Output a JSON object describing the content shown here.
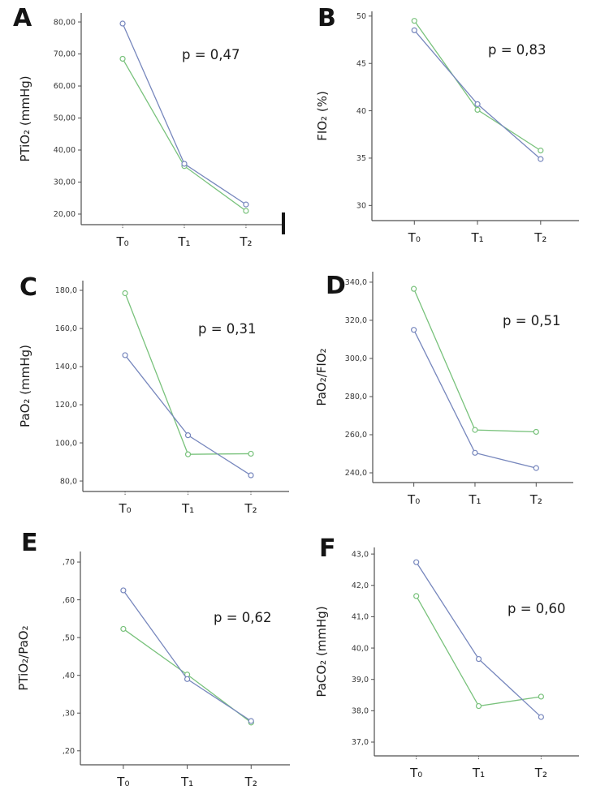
{
  "colors": {
    "series_blue": "#7787bd",
    "series_green": "#79c27c",
    "axis": "#4f4f4f",
    "tick_text": "#383838",
    "annotation_text": "#1c1c1c",
    "endcap": "#161616"
  },
  "chart_data": [
    {
      "panel_label": "A",
      "type": "line",
      "ylabel": "PTiO₂ (mmHg)",
      "xlabel": "",
      "p_label": "p = 0,47",
      "categories": [
        "T₀",
        "T₁",
        "T₂"
      ],
      "yticks": [
        20,
        30,
        40,
        50,
        60,
        70,
        80
      ],
      "ytick_labels": [
        "20,00",
        "30,00",
        "40,00",
        "50,00",
        "60,00",
        "70,00",
        "80,00"
      ],
      "ylim": [
        16.7,
        82.8
      ],
      "grid": false,
      "legend": "none",
      "series": [
        {
          "name": "green",
          "color_key": "series_green",
          "values": [
            68.5,
            35.0,
            21.0
          ]
        },
        {
          "name": "blue",
          "color_key": "series_blue",
          "values": [
            79.5,
            35.7,
            23.0
          ]
        }
      ]
    },
    {
      "panel_label": "B",
      "type": "line",
      "ylabel": "FIO₂ (%)",
      "xlabel": "",
      "p_label": "p = 0,83",
      "categories": [
        "T₀",
        "T₁",
        "T₂"
      ],
      "yticks": [
        30,
        35,
        40,
        45,
        50
      ],
      "ytick_labels": [
        "30",
        "35",
        "40",
        "45",
        "50"
      ],
      "ylim": [
        28.4,
        50.5
      ],
      "grid": false,
      "legend": "none",
      "series": [
        {
          "name": "green",
          "color_key": "series_green",
          "values": [
            49.5,
            40.1,
            35.8
          ]
        },
        {
          "name": "blue",
          "color_key": "series_blue",
          "values": [
            48.5,
            40.7,
            34.9
          ]
        }
      ]
    },
    {
      "panel_label": "C",
      "type": "line",
      "ylabel": "PaO₂ (mmHg)",
      "xlabel": "",
      "p_label": "p = 0,31",
      "categories": [
        "T₀",
        "T₁",
        "T₂"
      ],
      "yticks": [
        80,
        100,
        120,
        140,
        160,
        180
      ],
      "ytick_labels": [
        "80,0",
        "100,0",
        "120,0",
        "140,0",
        "160,0",
        "180,0"
      ],
      "ylim": [
        74.5,
        185.1
      ],
      "grid": false,
      "legend": "none",
      "series": [
        {
          "name": "green",
          "color_key": "series_green",
          "values": [
            178.5,
            94.0,
            94.3
          ]
        },
        {
          "name": "blue",
          "color_key": "series_blue",
          "values": [
            146.0,
            104.0,
            83.0
          ]
        }
      ]
    },
    {
      "panel_label": "D",
      "type": "line",
      "ylabel": "PaO₂/FIO₂",
      "xlabel": "",
      "p_label": "p = 0,51",
      "categories": [
        "T₀",
        "T₁",
        "T₂"
      ],
      "yticks": [
        240,
        260,
        280,
        300,
        320,
        340
      ],
      "ytick_labels": [
        "240,0",
        "260,0",
        "280,0",
        "300,0",
        "320,0",
        "340,0"
      ],
      "ylim": [
        234.9,
        345.5
      ],
      "grid": false,
      "legend": "none",
      "series": [
        {
          "name": "green",
          "color_key": "series_green",
          "values": [
            336.5,
            262.5,
            261.5
          ]
        },
        {
          "name": "blue",
          "color_key": "series_blue",
          "values": [
            315.0,
            250.5,
            242.5
          ]
        }
      ]
    },
    {
      "panel_label": "E",
      "type": "line",
      "ylabel": "PTiO₂/PaO₂",
      "xlabel": "",
      "p_label": "p = 0,62",
      "categories": [
        "T₀",
        "T₁",
        "T₂"
      ],
      "yticks": [
        0.2,
        0.3,
        0.4,
        0.5,
        0.6,
        0.7
      ],
      "ytick_labels": [
        ",20",
        ",30",
        ",40",
        ",50",
        ",60",
        ",70"
      ],
      "ylim": [
        0.163,
        0.728
      ],
      "grid": false,
      "legend": "none",
      "series": [
        {
          "name": "green",
          "color_key": "series_green",
          "values": [
            0.523,
            0.402,
            0.275
          ]
        },
        {
          "name": "blue",
          "color_key": "series_blue",
          "values": [
            0.625,
            0.39,
            0.279
          ]
        }
      ]
    },
    {
      "panel_label": "F",
      "type": "line",
      "ylabel": "PaCO₂ (mmHg)",
      "xlabel": "",
      "p_label": "p = 0,60",
      "categories": [
        "T₀",
        "T₁",
        "T₂"
      ],
      "yticks": [
        37,
        38,
        39,
        40,
        41,
        42,
        43
      ],
      "ytick_labels": [
        "37,0",
        "38,0",
        "39,0",
        "40,0",
        "41,0",
        "42,0",
        "43,0"
      ],
      "ylim": [
        36.56,
        43.21
      ],
      "grid": false,
      "legend": "none",
      "series": [
        {
          "name": "green",
          "color_key": "series_green",
          "values": [
            41.66,
            38.15,
            38.45
          ]
        },
        {
          "name": "blue",
          "color_key": "series_blue",
          "values": [
            42.74,
            39.65,
            37.8
          ]
        }
      ]
    }
  ]
}
